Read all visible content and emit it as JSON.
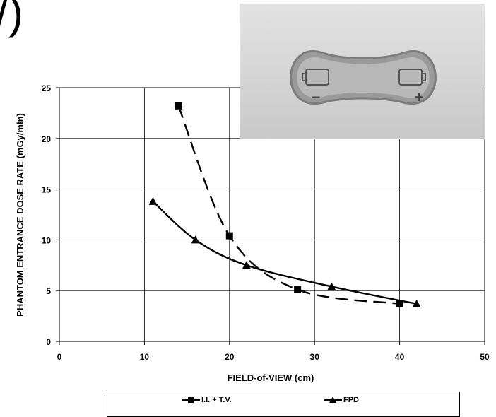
{
  "panel_label": "/)",
  "chart_data": {
    "type": "line",
    "title": "",
    "xlabel": "FIELD-of-VIEW (cm)",
    "ylabel": "PHANTOM ENTRANCE DOSE RATE (mGy/min)",
    "xlim": [
      0,
      50
    ],
    "ylim": [
      0,
      25
    ],
    "xticks": [
      0,
      10,
      20,
      30,
      40,
      50
    ],
    "yticks": [
      0,
      5,
      10,
      15,
      20,
      25
    ],
    "grid": true,
    "legend_position": "bottom",
    "series": [
      {
        "name": "I.I. + T.V.",
        "marker": "square",
        "line_style": "dashed",
        "color": "#000000",
        "x": [
          14,
          20,
          28,
          40
        ],
        "y": [
          23.2,
          10.4,
          5.1,
          3.7
        ]
      },
      {
        "name": "FPD",
        "marker": "triangle",
        "line_style": "solid",
        "color": "#000000",
        "x": [
          11,
          16,
          22,
          32,
          42
        ],
        "y": [
          13.8,
          10.0,
          7.5,
          5.4,
          3.7
        ]
      }
    ]
  },
  "photo": {
    "minus_sign": "−",
    "plus_sign": "+",
    "background_color": "#d3d3d3"
  }
}
